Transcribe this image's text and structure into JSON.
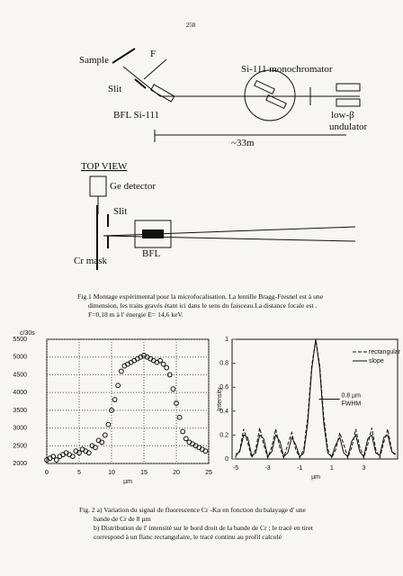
{
  "page_number": "258",
  "figure1": {
    "labels": [
      "Sample",
      "F",
      "Slit",
      "BFL  Si-111",
      "Si-111 monochromator",
      "low-β",
      "undulator",
      "~33m"
    ],
    "top_view": [
      "TOP VIEW",
      "Ge detector",
      "Slit",
      "BFL",
      "Cr mask"
    ],
    "caption": [
      "Fig.1 Montage expérimental pour la microfocalisation. La lentille Bragg-Fresnel est à une",
      "dimension, les traits gravés étant ici dans le sens du faisceau.La distance focale est .",
      "F=0,18 m à l' énergie  E= 14,6 keV."
    ]
  },
  "chart_data": [
    {
      "type": "scatter",
      "ylabel": "c/30s",
      "xlabel": "µm",
      "color": "#111111",
      "grid": true,
      "xlim": [
        0,
        25
      ],
      "xticks": [
        0,
        5,
        10,
        15,
        20,
        25
      ],
      "ylim": [
        2000,
        5500
      ],
      "yticks": [
        2000,
        2500,
        3000,
        3500,
        4000,
        4500,
        5000,
        5500
      ],
      "x": [
        0,
        0.5,
        1,
        1.5,
        2,
        2.5,
        3,
        3.5,
        4,
        4.5,
        5,
        5.5,
        6,
        6.5,
        7,
        7.5,
        8,
        8.5,
        9,
        9.5,
        10,
        10.5,
        11,
        11.5,
        12,
        12.5,
        13,
        13.5,
        14,
        14.5,
        15,
        15.5,
        16,
        16.5,
        17,
        17.5,
        18,
        18.5,
        19,
        19.5,
        20,
        20.5,
        21,
        21.5,
        22,
        22.5,
        23,
        23.5,
        24,
        24.5
      ],
      "values": [
        2100,
        2150,
        2200,
        2100,
        2200,
        2250,
        2300,
        2250,
        2200,
        2350,
        2300,
        2400,
        2350,
        2300,
        2500,
        2450,
        2650,
        2600,
        2800,
        3100,
        3500,
        3800,
        4200,
        4600,
        4750,
        4800,
        4850,
        4900,
        4950,
        5000,
        5050,
        5000,
        4950,
        4900,
        4850,
        4900,
        4800,
        4700,
        4500,
        4100,
        3700,
        3300,
        2900,
        2700,
        2600,
        2550,
        2500,
        2450,
        2400,
        2350
      ]
    },
    {
      "type": "line",
      "ylabel": "Intensity",
      "xlabel": "µm",
      "grid": false,
      "xlim": [
        -5,
        5
      ],
      "xticks": [
        -5,
        -3,
        -1,
        1,
        3
      ],
      "ylim": [
        0,
        1
      ],
      "yticks": [
        0,
        0.2,
        0.4,
        0.6,
        0.8,
        1
      ],
      "annotations": [
        "0.8 µm",
        "FWHM"
      ],
      "x": [
        -5,
        -4.75,
        -4.5,
        -4.25,
        -4,
        -3.75,
        -3.5,
        -3.25,
        -3,
        -2.75,
        -2.5,
        -2.25,
        -2,
        -1.75,
        -1.5,
        -1.25,
        -1,
        -0.75,
        -0.5,
        -0.25,
        0,
        0.25,
        0.5,
        0.75,
        1,
        1.25,
        1.5,
        1.75,
        2,
        2.25,
        2.5,
        2.75,
        3,
        3.25,
        3.5,
        3.75,
        4,
        4.25,
        4.5,
        4.75,
        5
      ],
      "series": [
        {
          "name": "rectangular",
          "color": "#111111",
          "dash": true,
          "values": [
            0.02,
            0.07,
            0.25,
            0.14,
            0.01,
            0.08,
            0.26,
            0.12,
            0.01,
            0.1,
            0.25,
            0.1,
            0.01,
            0.12,
            0.22,
            0.08,
            0.01,
            0.08,
            0.35,
            0.78,
            1,
            0.78,
            0.35,
            0.08,
            0.01,
            0.08,
            0.22,
            0.12,
            0.01,
            0.1,
            0.25,
            0.1,
            0.01,
            0.12,
            0.26,
            0.08,
            0.01,
            0.14,
            0.25,
            0.07,
            0.02
          ]
        },
        {
          "name": "slope",
          "color": "#111111",
          "dash": false,
          "values": [
            0.04,
            0.06,
            0.2,
            0.18,
            0.03,
            0.05,
            0.2,
            0.17,
            0.02,
            0.06,
            0.2,
            0.15,
            0.02,
            0.05,
            0.18,
            0.12,
            0.02,
            0.05,
            0.3,
            0.75,
            1,
            0.75,
            0.3,
            0.05,
            0.02,
            0.12,
            0.18,
            0.05,
            0.02,
            0.15,
            0.2,
            0.06,
            0.02,
            0.17,
            0.2,
            0.05,
            0.03,
            0.18,
            0.2,
            0.06,
            0.04
          ]
        }
      ]
    }
  ],
  "figure2": {
    "caption": [
      "Fig. 2 a) Variation du signal de fluorescence Cr -Kα en fonction du balayage d' une",
      "bande de Cr de 8 µm",
      "b) Distribution de l' intensité sur le bord droit de la bande de Cr ; le tracé en tiret",
      "correspond à un flanc rectangulaire, le tracé continu au profil calculé"
    ]
  }
}
